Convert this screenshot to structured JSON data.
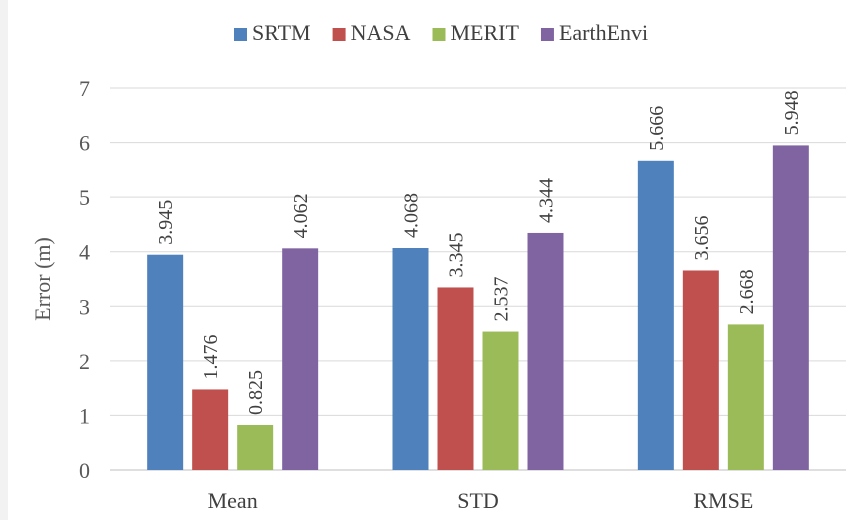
{
  "chart_data": {
    "type": "bar",
    "categories": [
      "Mean",
      "STD",
      "RMSE"
    ],
    "series": [
      {
        "name": "SRTM",
        "color": "#4f81bd",
        "values": [
          3.945,
          4.068,
          5.666
        ],
        "labels": [
          "3.945",
          "4.068",
          "5.666"
        ]
      },
      {
        "name": "NASA",
        "color": "#c0504d",
        "values": [
          1.476,
          3.345,
          3.656
        ],
        "labels": [
          "1.476",
          "3.345",
          "3.656"
        ]
      },
      {
        "name": "MERIT",
        "color": "#9bbb59",
        "values": [
          0.825,
          2.537,
          2.668
        ],
        "labels": [
          "0.825",
          "2.537",
          "2.668"
        ]
      },
      {
        "name": "EarthEnvi",
        "color": "#8064a2",
        "values": [
          4.062,
          4.344,
          5.948
        ],
        "labels": [
          "4.062",
          "4.344",
          "5.948"
        ]
      }
    ],
    "title": "",
    "xlabel": "",
    "ylabel": "Error (m)",
    "ylim": [
      0,
      7
    ],
    "yticks": [
      "0",
      "1",
      "2",
      "3",
      "4",
      "5",
      "6",
      "7"
    ],
    "grid": true,
    "legend_position": "top"
  }
}
